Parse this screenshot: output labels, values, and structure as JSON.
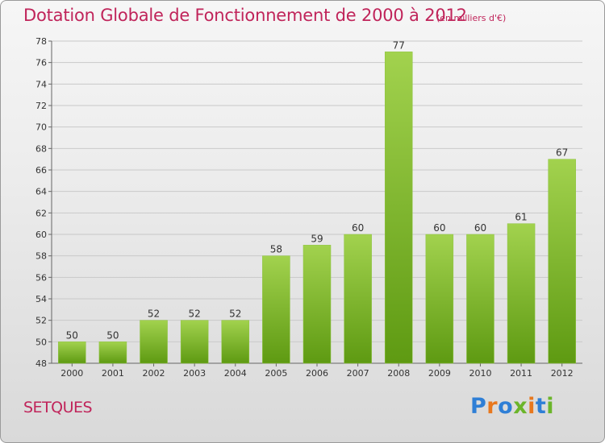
{
  "header": {
    "title": "Dotation Globale de Fonctionnement de 2000 à 2012",
    "subtitle": "(en milliers d'€)"
  },
  "footer": {
    "location": "SETQUES",
    "logo": "Proxiti"
  },
  "colors": {
    "title": "#c0245a",
    "bar_light": "#a2d24e",
    "bar_dark": "#5e9a12",
    "grid": "#c9c9c9",
    "logo_letters": [
      "#2f7fd6",
      "#e8781e",
      "#2f7fd6",
      "#6bb52a",
      "#e8781e",
      "#2f7fd6",
      "#6bb52a"
    ]
  },
  "chart_data": {
    "type": "bar",
    "title": "Dotation Globale de Fonctionnement de 2000 à 2012",
    "subtitle": "(en milliers d'€)",
    "categories": [
      "2000",
      "2001",
      "2002",
      "2003",
      "2004",
      "2005",
      "2006",
      "2007",
      "2008",
      "2009",
      "2010",
      "2011",
      "2012"
    ],
    "values": [
      50,
      50,
      52,
      52,
      52,
      58,
      59,
      60,
      77,
      60,
      60,
      61,
      67
    ],
    "ylim": [
      48,
      78
    ],
    "yticks": [
      48,
      50,
      52,
      54,
      56,
      58,
      60,
      62,
      64,
      66,
      68,
      70,
      72,
      74,
      76,
      78
    ],
    "grid": true,
    "data_labels": true
  }
}
